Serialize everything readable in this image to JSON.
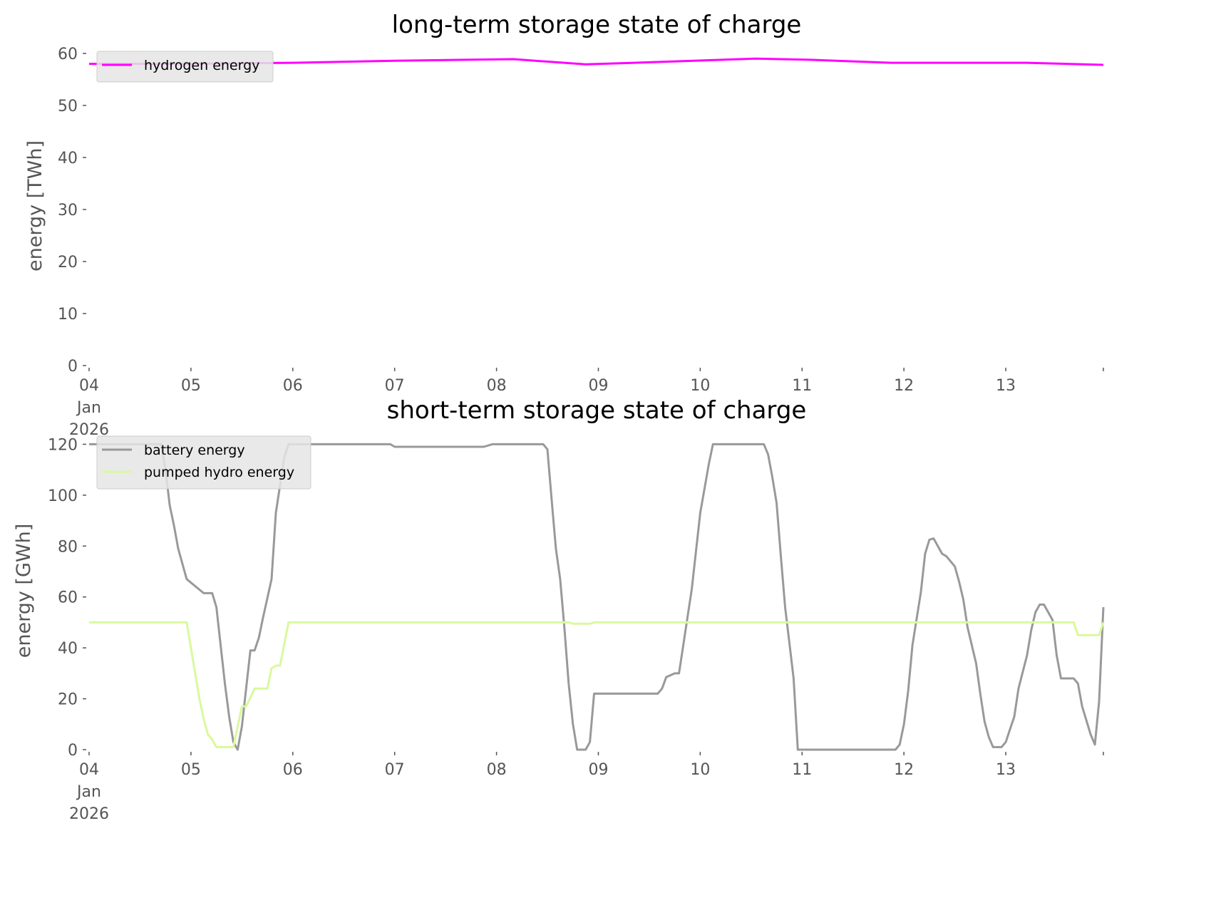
{
  "chart_data": [
    {
      "type": "line",
      "title": "long-term storage state of charge",
      "xlabel": "",
      "ylabel": "energy [TWh]",
      "xlim": [
        "2026-01-04T00:00",
        "2026-01-13T23:00"
      ],
      "ylim": [
        0,
        61.5
      ],
      "yticks": [
        0,
        10,
        20,
        30,
        40,
        50,
        60
      ],
      "xticks": [
        {
          "date": "2026-01-04T00:00",
          "label": [
            "04",
            "Jan",
            "2026"
          ]
        },
        {
          "date": "2026-01-05T00:00",
          "label": [
            "05"
          ]
        },
        {
          "date": "2026-01-06T00:00",
          "label": [
            "06"
          ]
        },
        {
          "date": "2026-01-07T00:00",
          "label": [
            "07"
          ]
        },
        {
          "date": "2026-01-08T00:00",
          "label": [
            "08"
          ]
        },
        {
          "date": "2026-01-09T00:00",
          "label": [
            "09"
          ]
        },
        {
          "date": "2026-01-10T00:00",
          "label": [
            "10"
          ]
        },
        {
          "date": "2026-01-11T00:00",
          "label": [
            "11"
          ]
        },
        {
          "date": "2026-01-12T00:00",
          "label": [
            "12"
          ]
        },
        {
          "date": "2026-01-13T00:00",
          "label": [
            "13"
          ]
        },
        {
          "date": "2026-01-13T23:00",
          "label": []
        }
      ],
      "grid": false,
      "legend": "top-left",
      "series": [
        {
          "name": "hydrogen energy",
          "color": "#ff00ff",
          "points": [
            [
              "2026-01-04T00:00",
              58.0
            ],
            [
              "2026-01-05T00:00",
              58.0
            ],
            [
              "2026-01-06T00:00",
              58.2
            ],
            [
              "2026-01-07T00:00",
              58.6
            ],
            [
              "2026-01-08T04:00",
              58.9
            ],
            [
              "2026-01-08T21:00",
              57.9
            ],
            [
              "2026-01-09T12:00",
              58.3
            ],
            [
              "2026-01-10T13:00",
              59.0
            ],
            [
              "2026-01-11T01:00",
              58.8
            ],
            [
              "2026-01-11T21:00",
              58.2
            ],
            [
              "2026-01-13T05:00",
              58.2
            ],
            [
              "2026-01-13T23:00",
              57.8
            ]
          ]
        }
      ]
    },
    {
      "type": "line",
      "title": "short-term storage state of charge",
      "xlabel": "",
      "ylabel": "energy [GWh]",
      "xlim": [
        "2026-01-04T00:00",
        "2026-01-13T23:00"
      ],
      "ylim": [
        0,
        126
      ],
      "yticks": [
        0,
        20,
        40,
        60,
        80,
        100,
        120
      ],
      "xticks": [
        {
          "date": "2026-01-04T00:00",
          "label": [
            "04",
            "Jan",
            "2026"
          ]
        },
        {
          "date": "2026-01-05T00:00",
          "label": [
            "05"
          ]
        },
        {
          "date": "2026-01-06T00:00",
          "label": [
            "06"
          ]
        },
        {
          "date": "2026-01-07T00:00",
          "label": [
            "07"
          ]
        },
        {
          "date": "2026-01-08T00:00",
          "label": [
            "08"
          ]
        },
        {
          "date": "2026-01-09T00:00",
          "label": [
            "09"
          ]
        },
        {
          "date": "2026-01-10T00:00",
          "label": [
            "10"
          ]
        },
        {
          "date": "2026-01-11T00:00",
          "label": [
            "11"
          ]
        },
        {
          "date": "2026-01-12T00:00",
          "label": [
            "12"
          ]
        },
        {
          "date": "2026-01-13T00:00",
          "label": [
            "13"
          ]
        },
        {
          "date": "2026-01-13T23:00",
          "label": []
        }
      ],
      "grid": false,
      "legend": "top-left",
      "series": [
        {
          "name": "battery energy",
          "color": "#999999",
          "points": [
            [
              "2026-01-04T00:00",
              120
            ],
            [
              "2026-01-04T17:00",
              120
            ],
            [
              "2026-01-04T18:00",
              110
            ],
            [
              "2026-01-04T19:00",
              96
            ],
            [
              "2026-01-04T20:00",
              88
            ],
            [
              "2026-01-04T21:00",
              79
            ],
            [
              "2026-01-04T23:00",
              67
            ],
            [
              "2026-01-05T03:00",
              61.5
            ],
            [
              "2026-01-05T05:00",
              61.5
            ],
            [
              "2026-01-05T06:00",
              56
            ],
            [
              "2026-01-05T08:00",
              26
            ],
            [
              "2026-01-05T09:00",
              13
            ],
            [
              "2026-01-05T10:00",
              3
            ],
            [
              "2026-01-05T11:00",
              0
            ],
            [
              "2026-01-05T12:00",
              9
            ],
            [
              "2026-01-05T14:00",
              39
            ],
            [
              "2026-01-05T15:00",
              39
            ],
            [
              "2026-01-05T16:00",
              44
            ],
            [
              "2026-01-05T17:00",
              52
            ],
            [
              "2026-01-05T19:00",
              67
            ],
            [
              "2026-01-05T20:00",
              93
            ],
            [
              "2026-01-05T22:00",
              115
            ],
            [
              "2026-01-05T23:00",
              120
            ],
            [
              "2026-01-06T23:00",
              120
            ],
            [
              "2026-01-07T00:00",
              119
            ],
            [
              "2026-01-07T21:00",
              119
            ],
            [
              "2026-01-07T23:00",
              120
            ],
            [
              "2026-01-08T11:00",
              120
            ],
            [
              "2026-01-08T12:00",
              118
            ],
            [
              "2026-01-08T13:00",
              98
            ],
            [
              "2026-01-08T14:00",
              79
            ],
            [
              "2026-01-08T15:00",
              67
            ],
            [
              "2026-01-08T16:00",
              48
            ],
            [
              "2026-01-08T17:00",
              26
            ],
            [
              "2026-01-08T18:00",
              10
            ],
            [
              "2026-01-08T19:00",
              0
            ],
            [
              "2026-01-08T21:00",
              0
            ],
            [
              "2026-01-08T22:00",
              3
            ],
            [
              "2026-01-08T23:00",
              22
            ],
            [
              "2026-01-09T14:00",
              22
            ],
            [
              "2026-01-09T15:00",
              24
            ],
            [
              "2026-01-09T16:00",
              28.5
            ],
            [
              "2026-01-09T18:00",
              30
            ],
            [
              "2026-01-09T19:00",
              30
            ],
            [
              "2026-01-09T20:00",
              41
            ],
            [
              "2026-01-09T21:00",
              52
            ],
            [
              "2026-01-09T22:00",
              63
            ],
            [
              "2026-01-10T00:00",
              93
            ],
            [
              "2026-01-10T02:00",
              112
            ],
            [
              "2026-01-10T03:00",
              120
            ],
            [
              "2026-01-10T15:00",
              120
            ],
            [
              "2026-01-10T16:00",
              116
            ],
            [
              "2026-01-10T17:00",
              107
            ],
            [
              "2026-01-10T18:00",
              97
            ],
            [
              "2026-01-10T19:00",
              76
            ],
            [
              "2026-01-10T20:00",
              56
            ],
            [
              "2026-01-10T22:00",
              28
            ],
            [
              "2026-01-10T23:00",
              0
            ],
            [
              "2026-01-11T22:00",
              0
            ],
            [
              "2026-01-11T23:00",
              2
            ],
            [
              "2026-01-12T00:00",
              10
            ],
            [
              "2026-01-12T01:00",
              23
            ],
            [
              "2026-01-12T02:00",
              41
            ],
            [
              "2026-01-12T04:00",
              62
            ],
            [
              "2026-01-12T05:00",
              77
            ],
            [
              "2026-01-12T06:00",
              82.5
            ],
            [
              "2026-01-12T07:00",
              83
            ],
            [
              "2026-01-12T09:00",
              77
            ],
            [
              "2026-01-12T10:00",
              76
            ],
            [
              "2026-01-12T12:00",
              72
            ],
            [
              "2026-01-12T13:00",
              66
            ],
            [
              "2026-01-12T14:00",
              59
            ],
            [
              "2026-01-12T15:00",
              48
            ],
            [
              "2026-01-12T17:00",
              34
            ],
            [
              "2026-01-12T18:00",
              22
            ],
            [
              "2026-01-12T19:00",
              11
            ],
            [
              "2026-01-12T20:00",
              5
            ],
            [
              "2026-01-12T21:00",
              1
            ],
            [
              "2026-01-12T23:00",
              1
            ],
            [
              "2026-01-13T00:00",
              3
            ],
            [
              "2026-01-13T01:00",
              8
            ],
            [
              "2026-01-13T02:00",
              13
            ],
            [
              "2026-01-13T03:00",
              24
            ],
            [
              "2026-01-13T05:00",
              37
            ],
            [
              "2026-01-13T06:00",
              47
            ],
            [
              "2026-01-13T07:00",
              54
            ],
            [
              "2026-01-13T08:00",
              57
            ],
            [
              "2026-01-13T09:00",
              57
            ],
            [
              "2026-01-13T11:00",
              51
            ],
            [
              "2026-01-13T12:00",
              37
            ],
            [
              "2026-01-13T13:00",
              28
            ],
            [
              "2026-01-13T16:00",
              28
            ],
            [
              "2026-01-13T17:00",
              26
            ],
            [
              "2026-01-13T18:00",
              17
            ],
            [
              "2026-01-13T20:00",
              6
            ],
            [
              "2026-01-13T21:00",
              2
            ],
            [
              "2026-01-13T22:00",
              19
            ],
            [
              "2026-01-13T23:00",
              56
            ]
          ]
        },
        {
          "name": "pumped hydro energy",
          "color": "#d9f99d",
          "points": [
            [
              "2026-01-04T00:00",
              50
            ],
            [
              "2026-01-04T23:00",
              50
            ],
            [
              "2026-01-05T01:00",
              30
            ],
            [
              "2026-01-05T02:00",
              20
            ],
            [
              "2026-01-05T03:00",
              12
            ],
            [
              "2026-01-05T04:00",
              6
            ],
            [
              "2026-01-05T05:00",
              4
            ],
            [
              "2026-01-05T06:00",
              1
            ],
            [
              "2026-01-05T10:00",
              1
            ],
            [
              "2026-01-05T12:00",
              17
            ],
            [
              "2026-01-05T13:00",
              17
            ],
            [
              "2026-01-05T15:00",
              24
            ],
            [
              "2026-01-05T18:00",
              24
            ],
            [
              "2026-01-05T19:00",
              32
            ],
            [
              "2026-01-05T20:00",
              33
            ],
            [
              "2026-01-05T21:00",
              33
            ],
            [
              "2026-01-05T23:00",
              50
            ],
            [
              "2026-01-08T17:00",
              50
            ],
            [
              "2026-01-08T18:00",
              49.5
            ],
            [
              "2026-01-08T22:00",
              49.5
            ],
            [
              "2026-01-08T23:00",
              50
            ],
            [
              "2026-01-13T16:00",
              50
            ],
            [
              "2026-01-13T17:00",
              45
            ],
            [
              "2026-01-13T22:00",
              45
            ],
            [
              "2026-01-13T23:00",
              50
            ]
          ]
        }
      ]
    }
  ]
}
